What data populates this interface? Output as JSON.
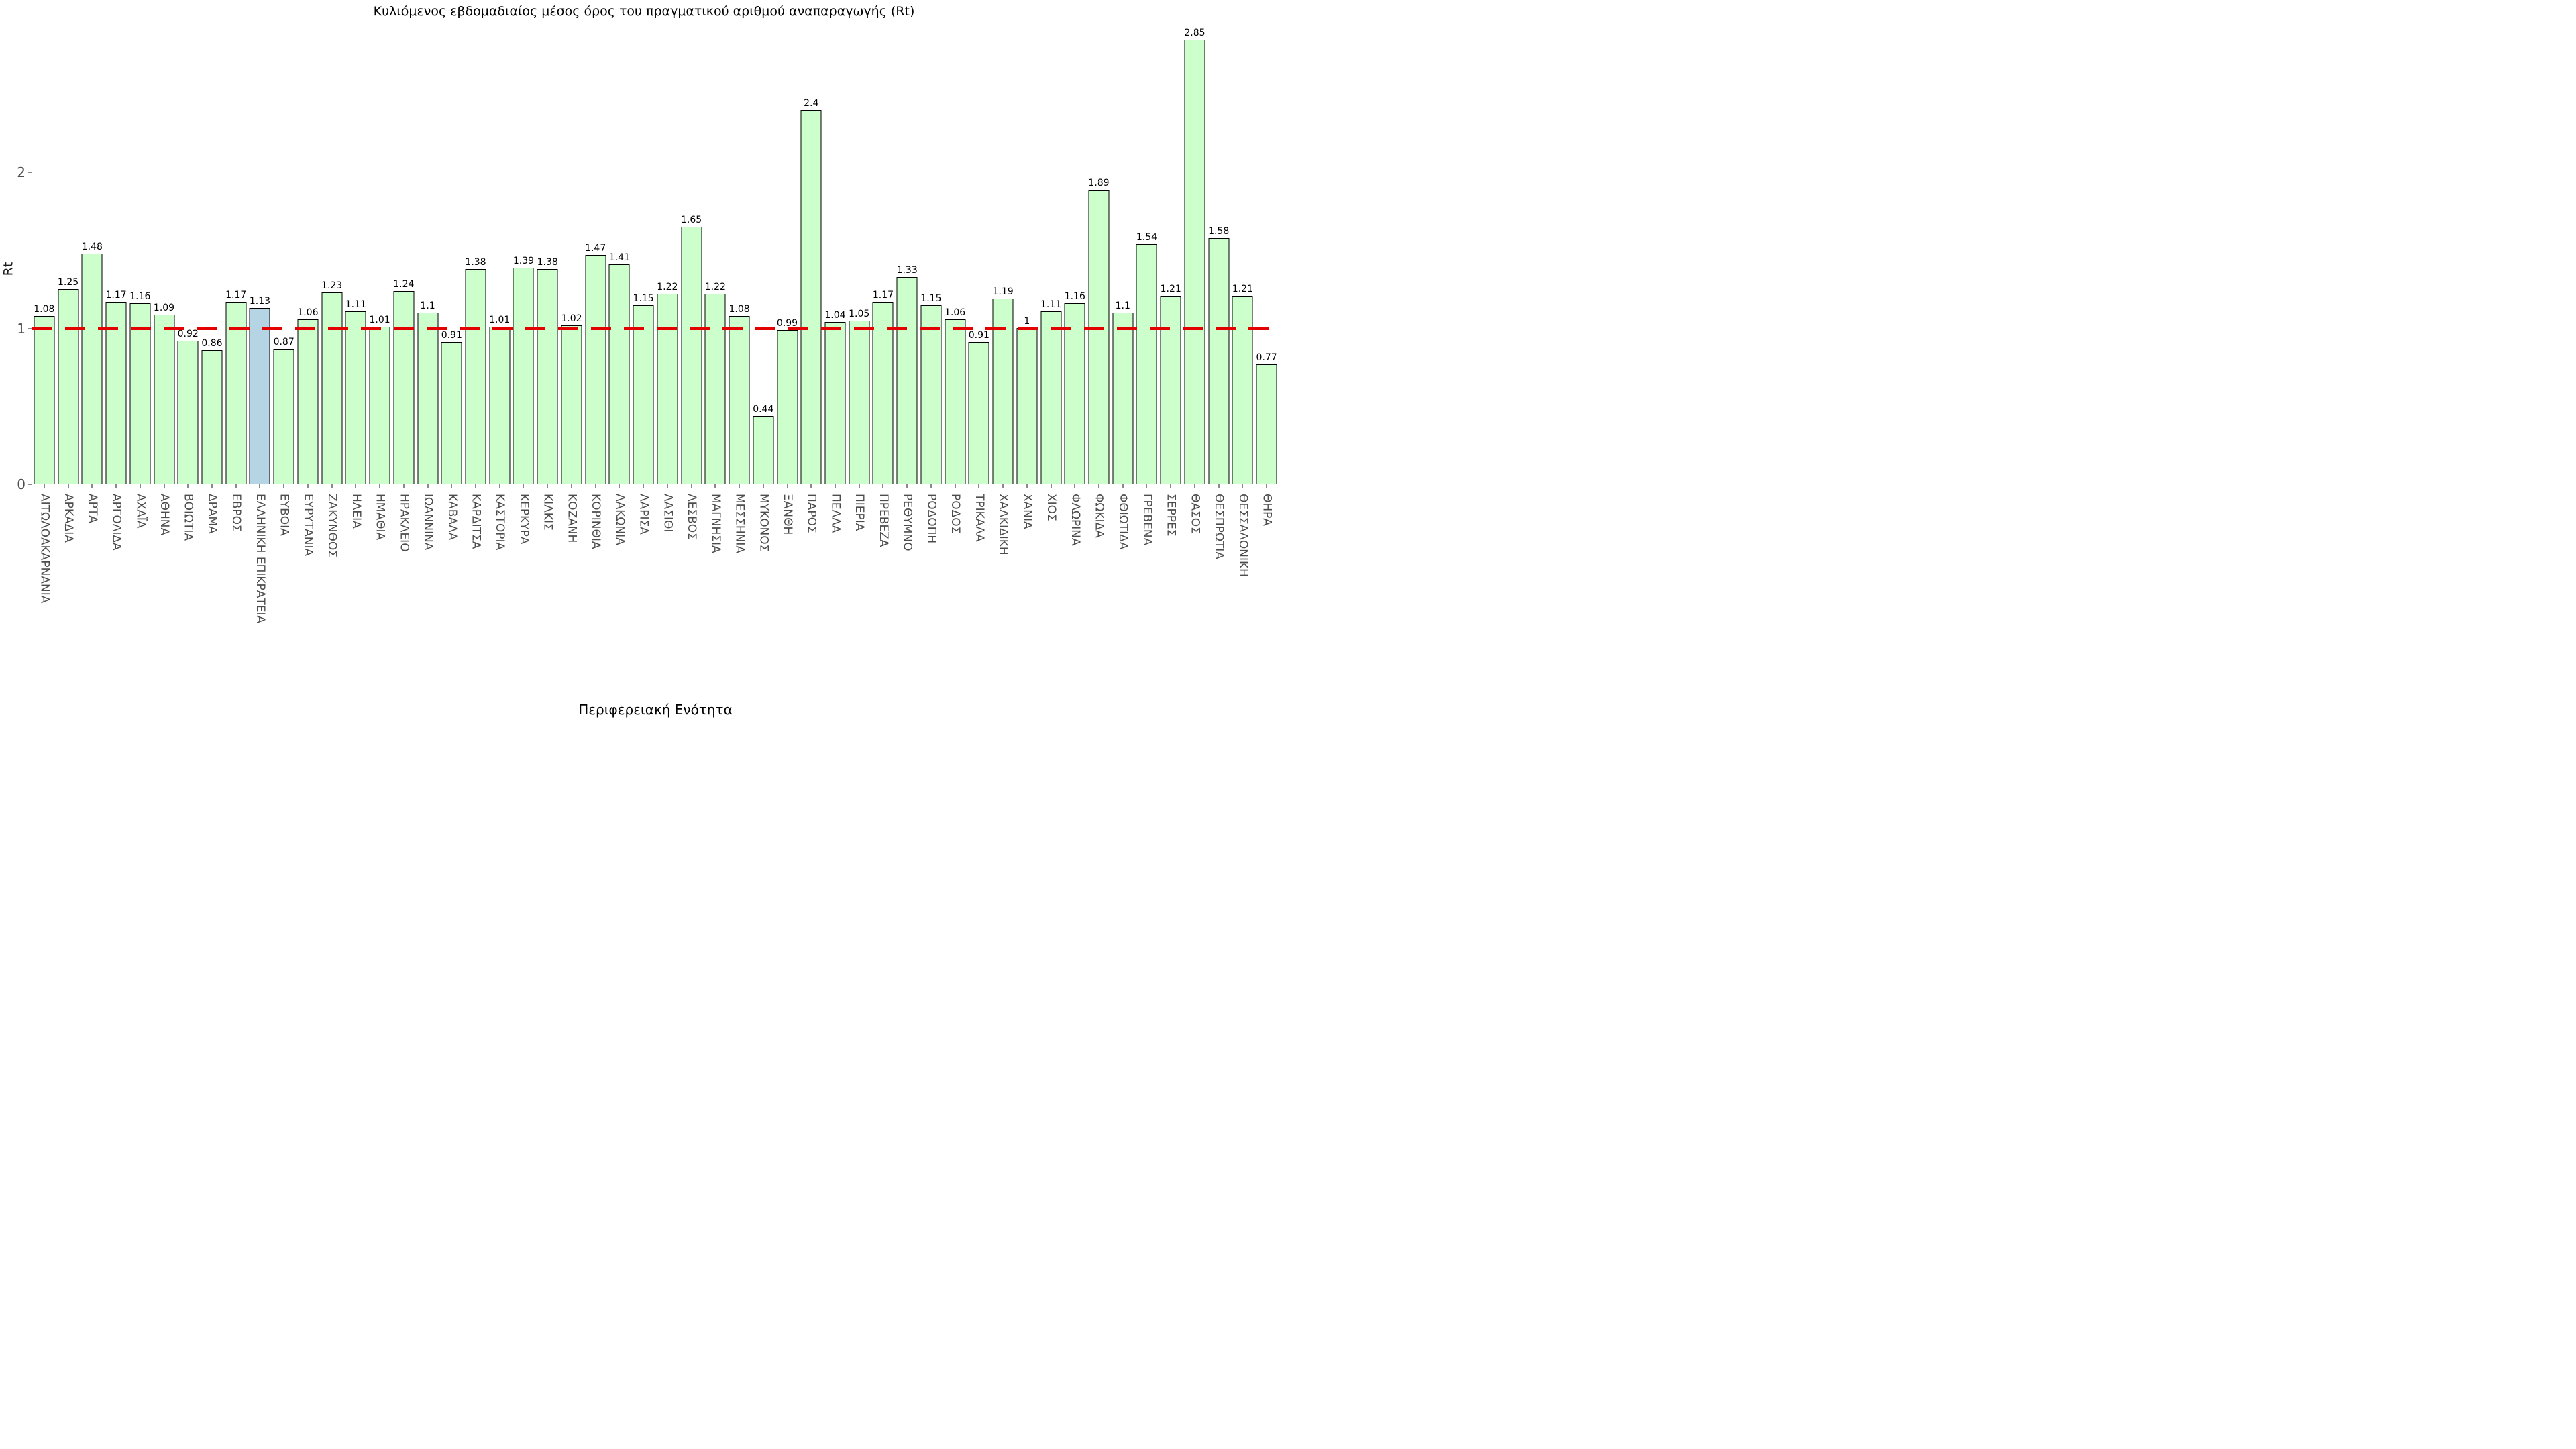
{
  "chart_data": {
    "type": "bar",
    "title": "Κυλιόμενος εβδομαδιαίος μέσος όρος του πραγματικού αριθμού αναπαραγωγής (Rt)",
    "xlabel": "Περιφερειακή Ενότητα",
    "ylabel": "Rt",
    "yticks": [
      0,
      1,
      2
    ],
    "ylim": [
      0,
      3.1
    ],
    "grid": false,
    "legend": "none",
    "reference_line_y": 1,
    "categories": [
      "ΑΙΤΩΛΟΑΚΑΡΝΑΝΙΑ",
      "ΑΡΚΑΔΙΑ",
      "ΑΡΤΑ",
      "ΑΡΓΟΛΙΔΑ",
      "ΑΧΑΪΑ",
      "ΑΘΗΝΑ",
      "ΒΟΙΩΤΙΑ",
      "ΔΡΑΜΑ",
      "ΕΒΡΟΣ",
      "ΕΛΛΗΝΙΚΗ ΕΠΙΚΡΑΤΕΙΑ",
      "ΕΥΒΟΙΑ",
      "ΕΥΡΥΤΑΝΙΑ",
      "ΖΑΚΥΝΘΟΣ",
      "ΗΛΕΙΑ",
      "ΗΜΑΘΙΑ",
      "ΗΡΑΚΛΕΙΟ",
      "ΙΩΑΝΝΙΝΑ",
      "ΚΑΒΑΛΑ",
      "ΚΑΡΔΙΤΣΑ",
      "ΚΑΣΤΟΡΙΑ",
      "ΚΕΡΚΥΡΑ",
      "ΚΙΛΚΙΣ",
      "ΚΟΖΑΝΗ",
      "ΚΟΡΙΝΘΙΑ",
      "ΛΑΚΩΝΙΑ",
      "ΛΑΡΙΣΑ",
      "ΛΑΣΙΘΙ",
      "ΛΕΣΒΟΣ",
      "ΜΑΓΝΗΣΙΑ",
      "ΜΕΣΣΗΝΙΑ",
      "ΜΥΚΟΝΟΣ",
      "ΞΑΝΘΗ",
      "ΠΑΡΟΣ",
      "ΠΕΛΛΑ",
      "ΠΙΕΡΙΑ",
      "ΠΡΕΒΕΖΑ",
      "ΡΕΘΥΜΝΟ",
      "ΡΟΔΟΠΗ",
      "ΡΟΔΟΣ",
      "ΤΡΙΚΑΛΑ",
      "ΧΑΛΚΙΔΙΚΗ",
      "ΧΑΝΙΑ",
      "ΧΙΟΣ",
      "ΦΛΩΡΙΝΑ",
      "ΦΩΚΙΔΑ",
      "ΦΘΙΩΤΙΔΑ",
      "ΓΡΕΒΕΝΑ",
      "ΣΕΡΡΕΣ",
      "ΘΑΣΟΣ",
      "ΘΕΣΠΡΩΤΙΑ",
      "ΘΕΣΣΑΛΟΝΙΚΗ",
      "ΘΗΡΑ"
    ],
    "values": [
      1.08,
      1.25,
      1.48,
      1.17,
      1.16,
      1.09,
      0.92,
      0.86,
      1.17,
      1.13,
      0.87,
      1.06,
      1.23,
      1.11,
      1.01,
      1.24,
      1.1,
      0.91,
      1.38,
      1.01,
      1.39,
      1.38,
      1.02,
      1.47,
      1.41,
      1.15,
      1.22,
      1.65,
      1.22,
      1.08,
      0.44,
      0.99,
      2.4,
      1.04,
      1.05,
      1.17,
      1.33,
      1.15,
      1.06,
      0.91,
      1.19,
      1,
      1.11,
      1.16,
      1.89,
      1.1,
      1.54,
      1.21,
      2.85,
      1.58,
      1.21,
      0.77
    ],
    "highlight_category": "ΕΛΛΗΝΙΚΗ ΕΠΙΚΡΑΤΕΙΑ",
    "colors": {
      "bar_fill": "#ccffcc",
      "bar_border": "#000000",
      "highlight_fill": "#b5d5e5",
      "reference_line": "#e50000",
      "tick_text": "#4d4d4d",
      "title_text": "#000000"
    }
  }
}
